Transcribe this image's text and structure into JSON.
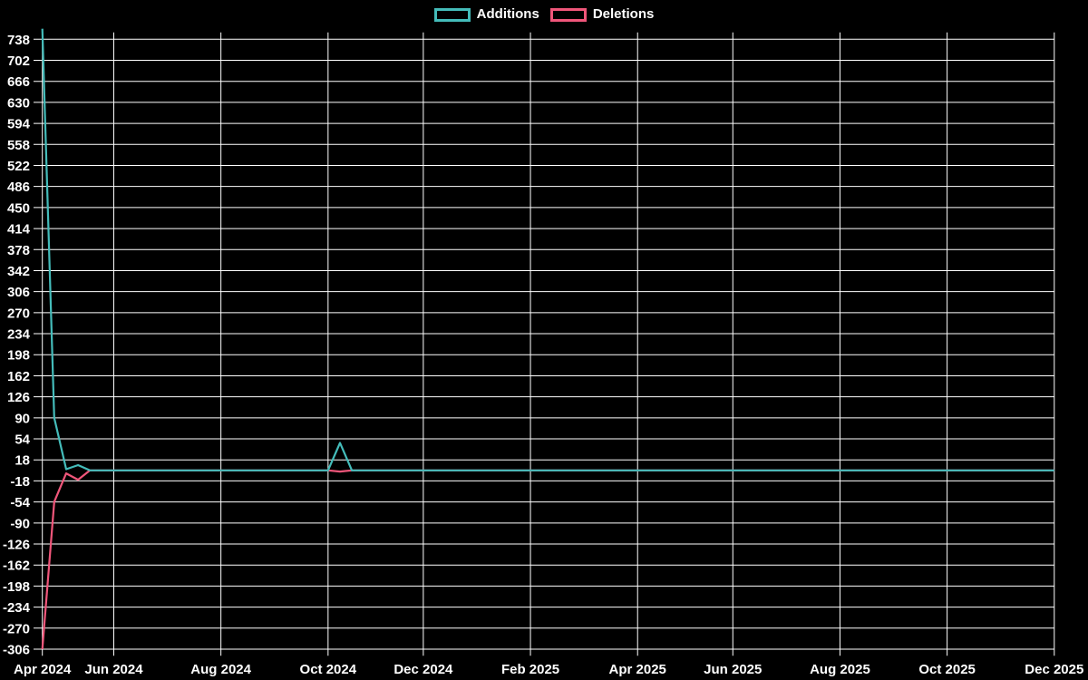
{
  "legend": {
    "position": "top"
  },
  "chart_data": {
    "type": "line",
    "title": "",
    "xlabel": "",
    "ylabel": "",
    "background": "#000000",
    "grid": true,
    "grid_color": "#ffffff",
    "text_color": "#ffffff",
    "legend_position": "top",
    "x_unit": "week",
    "x_range": [
      "Apr 2024",
      "Dec 2025"
    ],
    "ylim": [
      -306,
      738
    ],
    "y_ticks": [
      738,
      702,
      666,
      630,
      594,
      558,
      522,
      486,
      450,
      414,
      378,
      342,
      306,
      270,
      234,
      198,
      162,
      126,
      90,
      54,
      18,
      -18,
      -54,
      -90,
      -126,
      -162,
      -198,
      -234,
      -270,
      -306
    ],
    "x_ticks": [
      {
        "label": "Apr 2024",
        "week": 0
      },
      {
        "label": "Jun 2024",
        "week": 6
      },
      {
        "label": "Aug 2024",
        "week": 15
      },
      {
        "label": "Oct 2024",
        "week": 24
      },
      {
        "label": "Dec 2024",
        "week": 32
      },
      {
        "label": "Feb 2025",
        "week": 41
      },
      {
        "label": "Apr 2025",
        "week": 50
      },
      {
        "label": "Jun 2025",
        "week": 58
      },
      {
        "label": "Aug 2025",
        "week": 67
      },
      {
        "label": "Oct 2025",
        "week": 76
      },
      {
        "label": "Dec 2025",
        "week": 85
      }
    ],
    "series": [
      {
        "name": "Additions",
        "color": "#44bcba",
        "values": [
          756,
          90,
          2,
          9,
          0,
          0,
          0,
          0,
          0,
          0,
          0,
          0,
          0,
          0,
          0,
          0,
          0,
          0,
          0,
          0,
          0,
          0,
          0,
          0,
          0,
          47,
          0,
          0,
          0,
          0,
          0,
          0,
          0,
          0,
          0,
          0,
          0,
          0,
          0,
          0,
          0,
          0,
          0,
          0,
          0,
          0,
          0,
          0,
          0,
          0,
          0,
          0,
          0,
          0,
          0,
          0,
          0,
          0,
          0,
          0,
          0,
          0,
          0,
          0,
          0,
          0,
          0,
          0,
          0,
          0,
          0,
          0,
          0,
          0,
          0,
          0,
          0,
          0,
          0,
          0,
          0,
          0,
          0,
          0,
          0,
          0
        ]
      },
      {
        "name": "Deletions",
        "color": "#f0567a",
        "values": [
          -306,
          -54,
          -5,
          -16,
          0,
          0,
          0,
          0,
          0,
          0,
          0,
          0,
          0,
          0,
          0,
          0,
          0,
          0,
          0,
          0,
          0,
          0,
          0,
          0,
          0,
          -2,
          0,
          0,
          0,
          0,
          0,
          0,
          0,
          0,
          0,
          0,
          0,
          0,
          0,
          0,
          0,
          0,
          0,
          0,
          0,
          0,
          0,
          0,
          0,
          0,
          0,
          0,
          0,
          0,
          0,
          0,
          0,
          0,
          0,
          0,
          0,
          0,
          0,
          0,
          0,
          0,
          0,
          0,
          0,
          0,
          0,
          0,
          0,
          0,
          0,
          0,
          0,
          0,
          0,
          0,
          0,
          0,
          0,
          0,
          0,
          0
        ]
      }
    ]
  }
}
